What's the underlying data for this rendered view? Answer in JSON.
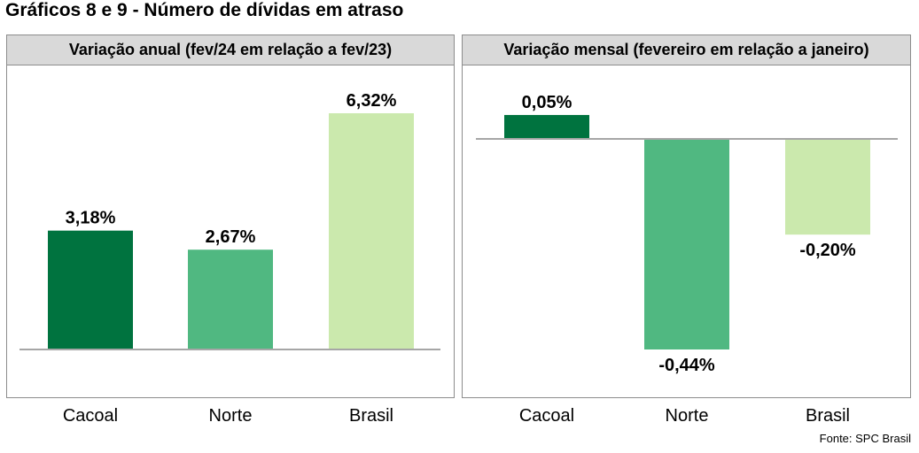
{
  "title": "Gráficos 8 e 9 - Número de dívidas em atraso",
  "source": "Fonte: SPC Brasil",
  "colors": {
    "Cacoal": "#00733f",
    "Norte": "#50b881",
    "Brasil": "#cbe9ad",
    "baseline": "#a6a6a6",
    "panel_header": "#d9d9d9",
    "border": "#8c8c8c"
  },
  "chart_data": [
    {
      "type": "bar",
      "title": "Variação anual (fev/24 em relação a fev/23)",
      "categories": [
        "Cacoal",
        "Norte",
        "Brasil"
      ],
      "values": [
        3.18,
        2.67,
        6.32
      ],
      "labels": [
        "3,18%",
        "2,67%",
        "6,32%"
      ],
      "unit": "%",
      "ylim": [
        0,
        6.32
      ],
      "grid": false,
      "legend": "none"
    },
    {
      "type": "bar",
      "title": "Variação mensal (fevereiro em relação a janeiro)",
      "categories": [
        "Cacoal",
        "Norte",
        "Brasil"
      ],
      "values": [
        0.05,
        -0.44,
        -0.2
      ],
      "labels": [
        "0,05%",
        "-0,44%",
        "-0,20%"
      ],
      "unit": "%",
      "ylim": [
        -0.44,
        0.05
      ],
      "grid": false,
      "legend": "none"
    }
  ]
}
